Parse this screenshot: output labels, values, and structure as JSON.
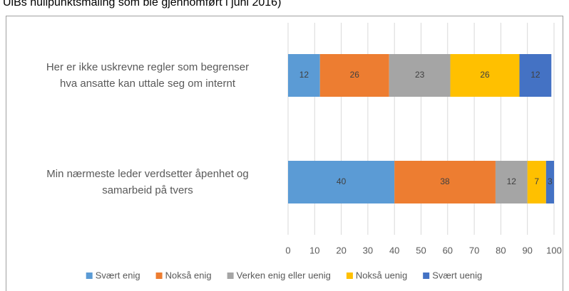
{
  "caption": "UiBs nullpunktsmåling som ble gjennomført i juni 2016)",
  "chart_data": {
    "type": "stacked-bar-horizontal",
    "categories": [
      [
        "Her er ikke uskrevne regler som begrenser",
        "hva ansatte kan uttale seg om internt"
      ],
      [
        "Min nærmeste leder verdsetter åpenhet og",
        "samarbeid på tvers"
      ]
    ],
    "series": [
      {
        "name": "Svært enig",
        "color": "#5b9bd5",
        "values": [
          12,
          40
        ]
      },
      {
        "name": "Nokså enig",
        "color": "#ed7d31",
        "values": [
          26,
          38
        ]
      },
      {
        "name": "Verken enig eller uenig",
        "color": "#a5a5a5",
        "values": [
          23,
          12
        ]
      },
      {
        "name": "Nokså uenig",
        "color": "#ffc000",
        "values": [
          26,
          7
        ]
      },
      {
        "name": "Svært uenig",
        "color": "#4472c4",
        "values": [
          12,
          3
        ]
      }
    ],
    "xlim": [
      0,
      100
    ],
    "xticks": [
      0,
      10,
      20,
      30,
      40,
      50,
      60,
      70,
      80,
      90,
      100
    ],
    "grid": true,
    "legend": "bottom"
  }
}
